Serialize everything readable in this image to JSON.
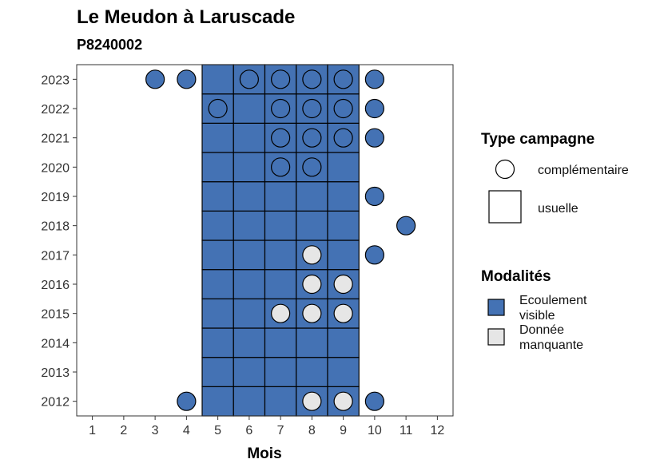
{
  "title": "Le Meudon à Laruscade",
  "subtitle": "P8240002",
  "colors": {
    "ecoulement": "#4472B4",
    "manquante": "#E6E6E6",
    "border": "#000000"
  },
  "chart_data": {
    "type": "heatmap",
    "xlabel": "Mois",
    "ylabel": "",
    "x_ticks": [
      "1",
      "2",
      "3",
      "4",
      "5",
      "6",
      "7",
      "8",
      "9",
      "10",
      "11",
      "12"
    ],
    "y_ticks": [
      "2012",
      "2013",
      "2014",
      "2015",
      "2016",
      "2017",
      "2018",
      "2019",
      "2020",
      "2021",
      "2022",
      "2023"
    ],
    "xlim": [
      0.5,
      12.5
    ],
    "ylim": [
      2011.5,
      2023.5
    ],
    "grid": false,
    "legend_position": "right",
    "legend": {
      "type_title": "Type campagne",
      "type_items": [
        {
          "label": "complémentaire",
          "shape": "circle"
        },
        {
          "label": "usuelle",
          "shape": "square"
        }
      ],
      "modalite_title": "Modalités",
      "modalite_items": [
        {
          "label": "Ecoulement visible",
          "lines": [
            "Ecoulement",
            "visible"
          ],
          "key": "ecoulement"
        },
        {
          "label": "Donnée manquante",
          "lines": [
            "Donnée",
            "manquante"
          ],
          "key": "manquante"
        }
      ]
    },
    "usuelle_months": [
      5,
      6,
      7,
      8,
      9
    ],
    "usuelle_years": [
      2012,
      2013,
      2014,
      2015,
      2016,
      2017,
      2018,
      2019,
      2020,
      2021,
      2022,
      2023
    ],
    "usuelle_modalite": "ecoulement",
    "complementaire_points": [
      {
        "year": 2023,
        "month": 3,
        "modalite": "ecoulement"
      },
      {
        "year": 2023,
        "month": 4,
        "modalite": "ecoulement"
      },
      {
        "year": 2023,
        "month": 6,
        "modalite": "ecoulement"
      },
      {
        "year": 2023,
        "month": 7,
        "modalite": "ecoulement"
      },
      {
        "year": 2023,
        "month": 8,
        "modalite": "ecoulement"
      },
      {
        "year": 2023,
        "month": 9,
        "modalite": "ecoulement"
      },
      {
        "year": 2023,
        "month": 10,
        "modalite": "ecoulement"
      },
      {
        "year": 2022,
        "month": 5,
        "modalite": "ecoulement"
      },
      {
        "year": 2022,
        "month": 7,
        "modalite": "ecoulement"
      },
      {
        "year": 2022,
        "month": 8,
        "modalite": "ecoulement"
      },
      {
        "year": 2022,
        "month": 9,
        "modalite": "ecoulement"
      },
      {
        "year": 2022,
        "month": 10,
        "modalite": "ecoulement"
      },
      {
        "year": 2021,
        "month": 7,
        "modalite": "ecoulement"
      },
      {
        "year": 2021,
        "month": 8,
        "modalite": "ecoulement"
      },
      {
        "year": 2021,
        "month": 9,
        "modalite": "ecoulement"
      },
      {
        "year": 2021,
        "month": 10,
        "modalite": "ecoulement"
      },
      {
        "year": 2020,
        "month": 7,
        "modalite": "ecoulement"
      },
      {
        "year": 2020,
        "month": 8,
        "modalite": "ecoulement"
      },
      {
        "year": 2019,
        "month": 10,
        "modalite": "ecoulement"
      },
      {
        "year": 2018,
        "month": 11,
        "modalite": "ecoulement"
      },
      {
        "year": 2017,
        "month": 8,
        "modalite": "manquante"
      },
      {
        "year": 2017,
        "month": 10,
        "modalite": "ecoulement"
      },
      {
        "year": 2016,
        "month": 8,
        "modalite": "manquante"
      },
      {
        "year": 2016,
        "month": 9,
        "modalite": "manquante"
      },
      {
        "year": 2015,
        "month": 7,
        "modalite": "manquante"
      },
      {
        "year": 2015,
        "month": 8,
        "modalite": "manquante"
      },
      {
        "year": 2015,
        "month": 9,
        "modalite": "manquante"
      },
      {
        "year": 2012,
        "month": 4,
        "modalite": "ecoulement"
      },
      {
        "year": 2012,
        "month": 8,
        "modalite": "manquante"
      },
      {
        "year": 2012,
        "month": 9,
        "modalite": "manquante"
      },
      {
        "year": 2012,
        "month": 10,
        "modalite": "ecoulement"
      }
    ]
  }
}
